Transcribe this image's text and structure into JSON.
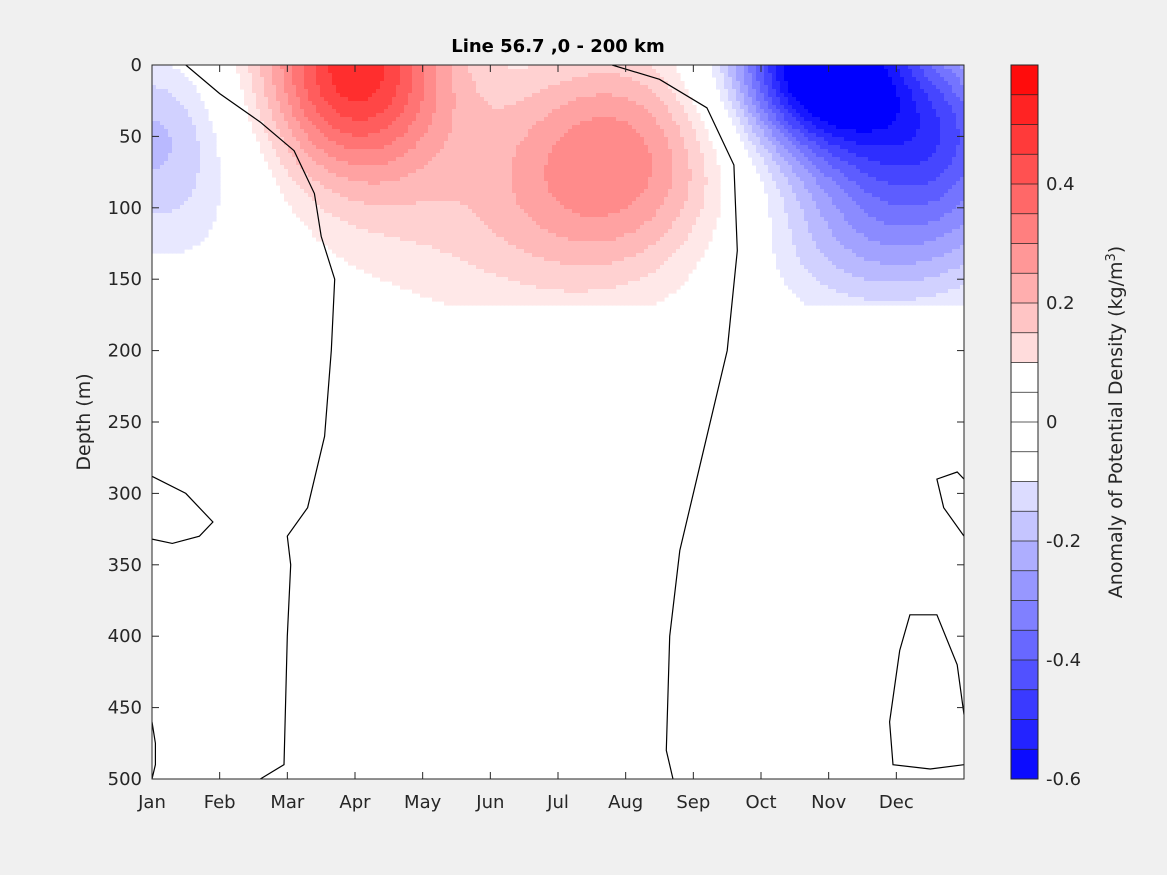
{
  "chart_data": {
    "type": "contourf",
    "title": "Line 56.7 ,0 - 200 km",
    "xlabel": "",
    "ylabel": "Depth (m)",
    "x_categories": [
      "Jan",
      "Feb",
      "Mar",
      "Apr",
      "May",
      "Jun",
      "Jul",
      "Aug",
      "Sep",
      "Oct",
      "Nov",
      "Dec"
    ],
    "y_ticks": [
      0,
      50,
      100,
      150,
      200,
      250,
      300,
      350,
      400,
      450,
      500
    ],
    "ylim": [
      0,
      500
    ],
    "y_reversed": true,
    "colorbar": {
      "label_main": "Anomaly of Potential Density (kg/m",
      "label_sup": "3",
      "label_close": ")",
      "clim": [
        -0.6,
        0.6
      ],
      "level_step": 0.05,
      "ticks": [
        -0.6,
        -0.4,
        -0.2,
        0,
        0.2,
        0.4
      ],
      "tick_labels": [
        "-0.6",
        "-0.4",
        "-0.2",
        "0",
        "0.2",
        "0.4"
      ],
      "colormap": "blue-white-red",
      "color_min": "#0000ff",
      "color_max": "#ff0000"
    },
    "features": [
      {
        "sign": "positive",
        "peak_value": 0.5,
        "peak_month": "Apr",
        "peak_depth": 0,
        "secondary_peak_month": "Aug",
        "secondary_peak_depth": 60,
        "max_depth": 170
      },
      {
        "sign": "negative",
        "peak_value": -0.55,
        "peak_month": "Nov",
        "peak_depth": 0,
        "max_depth": 180
      },
      {
        "sign": "negative",
        "peak_value": -0.15,
        "peak_month": "Jan",
        "peak_depth": 45,
        "max_depth": 130
      }
    ]
  },
  "colors": {
    "background": "#f0f0f0",
    "plot_background": "#ffffff",
    "contour_line": "#000000"
  }
}
